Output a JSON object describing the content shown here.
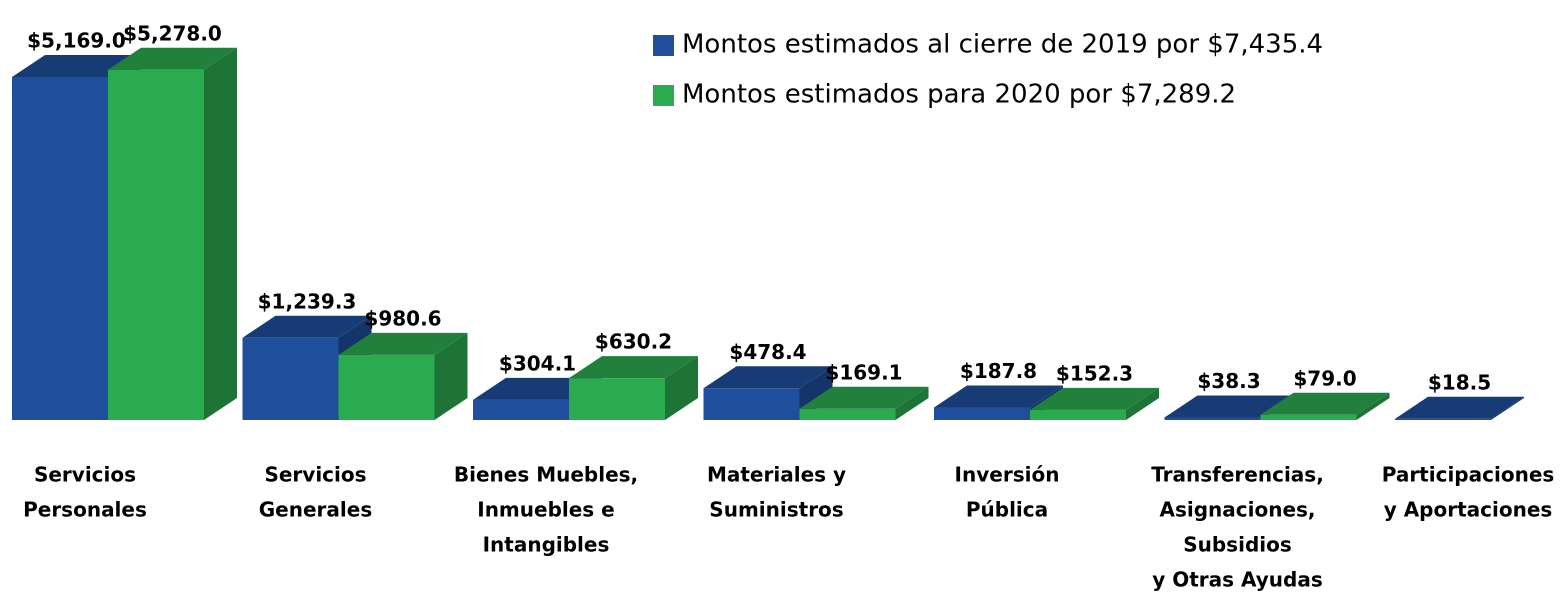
{
  "chart_data": {
    "type": "bar3d",
    "categories": [
      [
        "Servicios",
        "Personales"
      ],
      [
        "Servicios",
        "Generales"
      ],
      [
        "Bienes Muebles,",
        "Inmuebles e",
        "Intangibles"
      ],
      [
        "Materiales y",
        "Suministros"
      ],
      [
        "Inversión",
        "Pública"
      ],
      [
        "Transferencias,",
        "Asignaciones,",
        "Subsidios",
        "y Otras Ayudas"
      ],
      [
        "Participaciones",
        "y Aportaciones"
      ]
    ],
    "series": [
      {
        "name": "Montos estimados al cierre de 2019 por $7,435.4",
        "color": "#1f4e9c",
        "values": [
          5169.0,
          1239.3,
          304.1,
          478.4,
          187.8,
          38.3,
          18.5
        ],
        "value_labels": [
          "$5,169.0",
          "$1,239.3",
          "$304.1",
          "$478.4",
          "$187.8",
          "$38.3",
          "$18.5"
        ]
      },
      {
        "name": "Montos estimados para 2020 por $7,289.2",
        "color": "#2bab50",
        "values": [
          5278.0,
          980.6,
          630.2,
          169.1,
          152.3,
          79.0,
          null
        ],
        "value_labels": [
          "$5,278.0",
          "$980.6",
          "$630.2",
          "$169.1",
          "$152.3",
          "$79.0",
          null
        ]
      }
    ],
    "legend": "top-right"
  }
}
